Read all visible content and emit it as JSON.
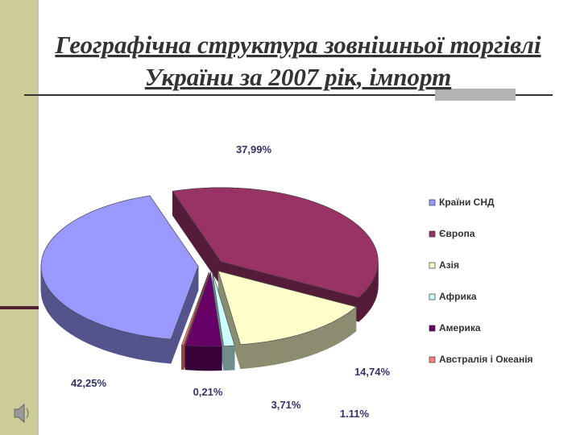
{
  "chart_data": {
    "type": "pie3d",
    "title": "Географічна структура зовнішньої торгівлі України за 2007 рік, імпорт",
    "categories": [
      "Країни СНД",
      "Європа",
      "Азія",
      "Африка",
      "Америка",
      "Австралія і Океанія"
    ],
    "values": [
      42.25,
      37.99,
      14.74,
      1.11,
      3.71,
      0.21
    ],
    "value_labels": [
      "42,25%",
      "37,99%",
      "14,74%",
      "1.11%",
      "3,71%",
      "0,21%"
    ],
    "colors": [
      "#9999ff",
      "#993366",
      "#ffffcc",
      "#ccffff",
      "#660066",
      "#ff8080"
    ],
    "legend": "right"
  }
}
